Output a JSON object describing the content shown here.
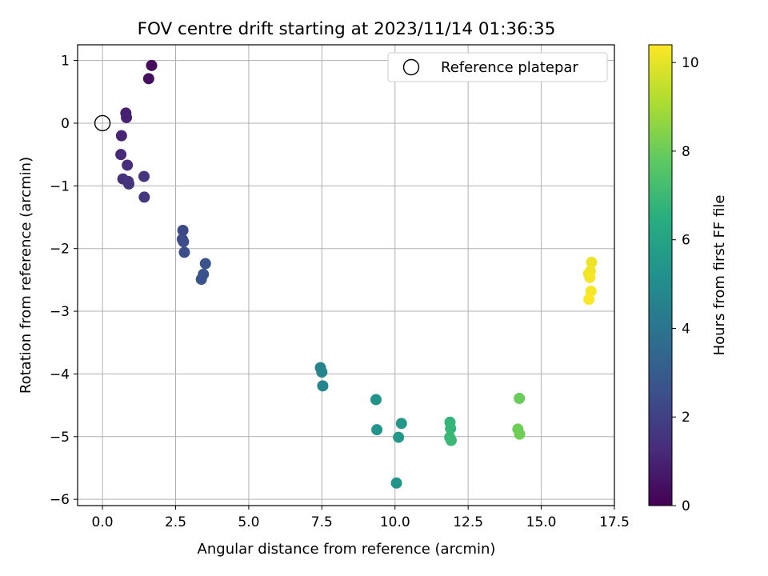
{
  "chart_data": {
    "type": "scatter",
    "title": "FOV centre drift starting at 2023/11/14 01:36:35",
    "xlabel": "Angular distance from reference (arcmin)",
    "ylabel": "Rotation from reference (arcmin)",
    "xlim": [
      -0.85,
      17.5
    ],
    "ylim": [
      -6.1,
      1.25
    ],
    "xticks": [
      0.0,
      2.5,
      5.0,
      7.5,
      10.0,
      12.5,
      15.0,
      17.5
    ],
    "xtick_labels": [
      "0.0",
      "2.5",
      "5.0",
      "7.5",
      "10.0",
      "12.5",
      "15.0",
      "17.5"
    ],
    "yticks": [
      1,
      0,
      -1,
      -2,
      -3,
      -4,
      -5,
      -6
    ],
    "ytick_labels": [
      "1",
      "0",
      "−1",
      "−2",
      "−3",
      "−4",
      "−5",
      "−6"
    ],
    "grid": true,
    "legend": {
      "placement": "upper right",
      "entries": [
        "Reference platepar"
      ]
    },
    "reference_point": {
      "x": 0,
      "y": 0,
      "label": "Reference platepar"
    },
    "colorbar": {
      "label": "Hours from first FF file",
      "colormap": "viridis",
      "range": [
        0,
        10.4
      ],
      "ticks": [
        0,
        2,
        4,
        6,
        8,
        10
      ],
      "tick_labels": [
        "0",
        "2",
        "4",
        "6",
        "8",
        "10"
      ]
    },
    "points": [
      {
        "x": 1.68,
        "y": 0.92,
        "hours": 0.3
      },
      {
        "x": 1.58,
        "y": 0.71,
        "hours": 0.4
      },
      {
        "x": 0.8,
        "y": 0.16,
        "hours": 0.9
      },
      {
        "x": 0.82,
        "y": 0.09,
        "hours": 0.95
      },
      {
        "x": 0.65,
        "y": -0.2,
        "hours": 1.1
      },
      {
        "x": 0.63,
        "y": -0.5,
        "hours": 1.2
      },
      {
        "x": 0.85,
        "y": -0.67,
        "hours": 1.3
      },
      {
        "x": 0.7,
        "y": -0.89,
        "hours": 1.4
      },
      {
        "x": 0.88,
        "y": -0.93,
        "hours": 1.45
      },
      {
        "x": 0.9,
        "y": -0.97,
        "hours": 1.5
      },
      {
        "x": 1.42,
        "y": -0.85,
        "hours": 1.55
      },
      {
        "x": 1.43,
        "y": -1.18,
        "hours": 1.6
      },
      {
        "x": 2.75,
        "y": -1.71,
        "hours": 2.3
      },
      {
        "x": 2.73,
        "y": -1.85,
        "hours": 2.35
      },
      {
        "x": 2.77,
        "y": -1.89,
        "hours": 2.4
      },
      {
        "x": 2.8,
        "y": -2.06,
        "hours": 2.45
      },
      {
        "x": 3.52,
        "y": -2.24,
        "hours": 2.6
      },
      {
        "x": 3.45,
        "y": -2.41,
        "hours": 2.65
      },
      {
        "x": 3.38,
        "y": -2.49,
        "hours": 2.7
      },
      {
        "x": 7.45,
        "y": -3.9,
        "hours": 4.6
      },
      {
        "x": 7.5,
        "y": -3.97,
        "hours": 4.65
      },
      {
        "x": 7.53,
        "y": -4.19,
        "hours": 4.7
      },
      {
        "x": 9.35,
        "y": -4.41,
        "hours": 5.3
      },
      {
        "x": 9.38,
        "y": -4.89,
        "hours": 5.35
      },
      {
        "x": 10.22,
        "y": -4.79,
        "hours": 5.5
      },
      {
        "x": 10.12,
        "y": -5.01,
        "hours": 5.45
      },
      {
        "x": 10.05,
        "y": -5.74,
        "hours": 5.4
      },
      {
        "x": 11.88,
        "y": -4.77,
        "hours": 6.8
      },
      {
        "x": 11.9,
        "y": -4.87,
        "hours": 6.85
      },
      {
        "x": 11.87,
        "y": -5.01,
        "hours": 6.9
      },
      {
        "x": 11.92,
        "y": -5.06,
        "hours": 6.95
      },
      {
        "x": 14.25,
        "y": -4.39,
        "hours": 8.0
      },
      {
        "x": 14.2,
        "y": -4.88,
        "hours": 8.05
      },
      {
        "x": 14.26,
        "y": -4.96,
        "hours": 8.1
      },
      {
        "x": 16.72,
        "y": -2.22,
        "hours": 10.1
      },
      {
        "x": 16.68,
        "y": -2.36,
        "hours": 10.15
      },
      {
        "x": 16.62,
        "y": -2.4,
        "hours": 10.2
      },
      {
        "x": 16.66,
        "y": -2.46,
        "hours": 10.25
      },
      {
        "x": 16.7,
        "y": -2.68,
        "hours": 10.3
      },
      {
        "x": 16.63,
        "y": -2.81,
        "hours": 10.35
      }
    ]
  }
}
